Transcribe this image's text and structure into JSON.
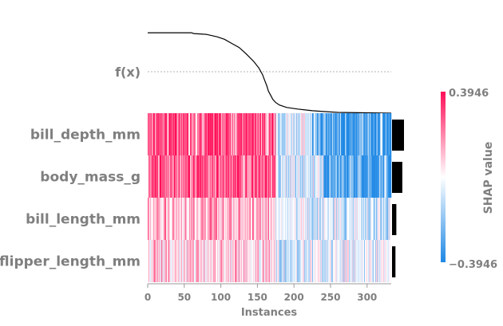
{
  "chart_data": {
    "type": "heatmap",
    "title": "",
    "xlabel": "Instances",
    "x_ticks": [
      0,
      50,
      100,
      150,
      200,
      250,
      300
    ],
    "xlim": [
      0,
      333
    ],
    "n_instances": 333,
    "fx_label": "f(x)",
    "features": [
      "bill_depth_mm",
      "body_mass_g",
      "bill_length_mm",
      "flipper_length_mm"
    ],
    "feature_importance_bars": [
      0.14,
      0.12,
      0.05,
      0.04
    ],
    "colorbar": {
      "title": "SHAP value",
      "max_label": "0.3946",
      "min_label": "−0.3946",
      "vmin": -0.3946,
      "vmax": 0.3946,
      "colors": {
        "positive": "#ff0d57",
        "mid": "#ffffff",
        "negative": "#1e88e5"
      }
    },
    "fx_curve": [
      [
        0,
        0.98
      ],
      [
        60,
        0.98
      ],
      [
        63,
        0.97
      ],
      [
        80,
        0.96
      ],
      [
        95,
        0.93
      ],
      [
        105,
        0.9
      ],
      [
        115,
        0.85
      ],
      [
        125,
        0.8
      ],
      [
        135,
        0.72
      ],
      [
        145,
        0.63
      ],
      [
        152,
        0.55
      ],
      [
        157,
        0.47
      ],
      [
        160,
        0.4
      ],
      [
        163,
        0.33
      ],
      [
        165,
        0.27
      ],
      [
        168,
        0.22
      ],
      [
        171,
        0.17
      ],
      [
        175,
        0.13
      ],
      [
        180,
        0.1
      ],
      [
        190,
        0.07
      ],
      [
        205,
        0.05
      ],
      [
        225,
        0.03
      ],
      [
        240,
        0.02
      ],
      [
        260,
        0.01
      ],
      [
        333,
        0.0
      ]
    ],
    "row_profiles": [
      {
        "feature": "bill_depth_mm",
        "segments": [
          [
            0,
            175,
            0.85
          ],
          [
            175,
            225,
            -0.1
          ],
          [
            225,
            333,
            -0.9
          ]
        ]
      },
      {
        "feature": "body_mass_g",
        "segments": [
          [
            0,
            175,
            0.75
          ],
          [
            175,
            240,
            -0.2
          ],
          [
            240,
            333,
            -0.85
          ]
        ]
      },
      {
        "feature": "bill_length_mm",
        "segments": [
          [
            0,
            175,
            0.35
          ],
          [
            175,
            333,
            -0.2
          ]
        ]
      },
      {
        "feature": "flipper_length_mm",
        "segments": [
          [
            0,
            175,
            0.2
          ],
          [
            175,
            333,
            -0.15
          ]
        ]
      }
    ]
  }
}
